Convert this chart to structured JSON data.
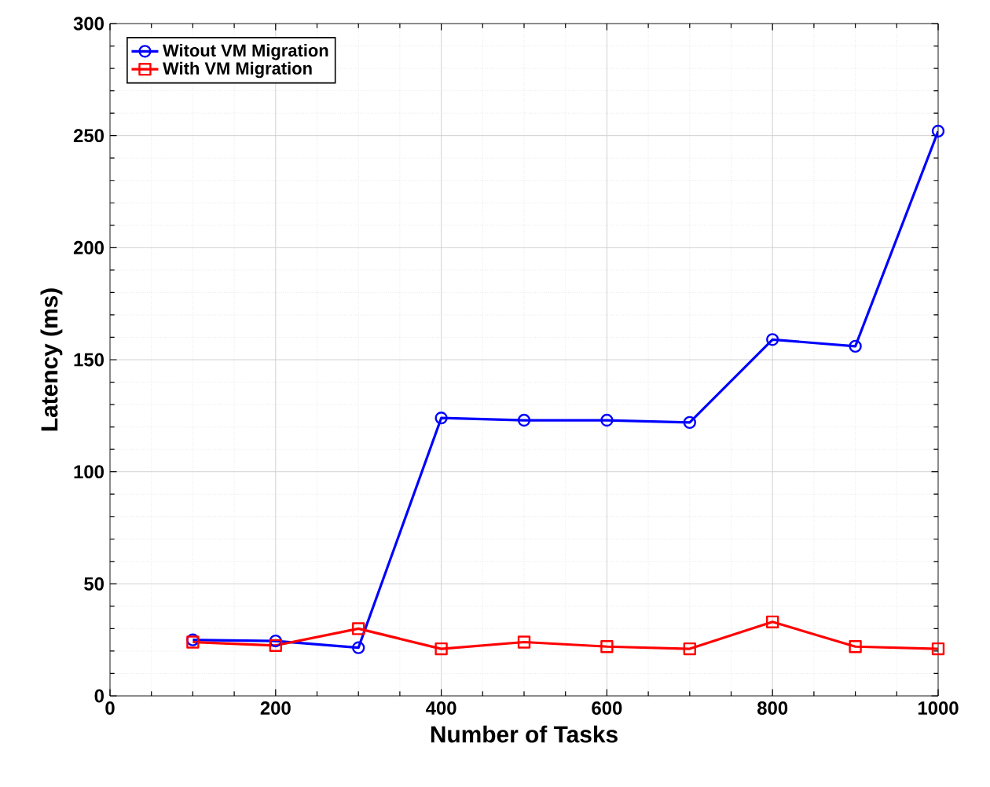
{
  "chart_data": {
    "type": "line",
    "xlabel": "Number of Tasks",
    "ylabel": "Latency (ms)",
    "x": [
      100,
      200,
      300,
      400,
      500,
      600,
      700,
      800,
      900,
      1000
    ],
    "series": [
      {
        "name": "Witout VM Migration",
        "color": "#0000ff",
        "marker": "circle",
        "values": [
          25,
          24.5,
          21.5,
          124,
          123,
          123,
          122,
          159,
          156,
          252
        ]
      },
      {
        "name": "With VM Migration",
        "color": "#ff0000",
        "marker": "square",
        "values": [
          24,
          22.5,
          30,
          21,
          24,
          22,
          21,
          33,
          22,
          21
        ]
      }
    ],
    "xlim": [
      0,
      1000
    ],
    "ylim": [
      0,
      300
    ],
    "xticks": [
      0,
      200,
      400,
      600,
      800,
      1000
    ],
    "yticks": [
      0,
      50,
      100,
      150,
      200,
      250,
      300
    ],
    "grid": true,
    "legend": "top left",
    "line_style": "solid"
  }
}
